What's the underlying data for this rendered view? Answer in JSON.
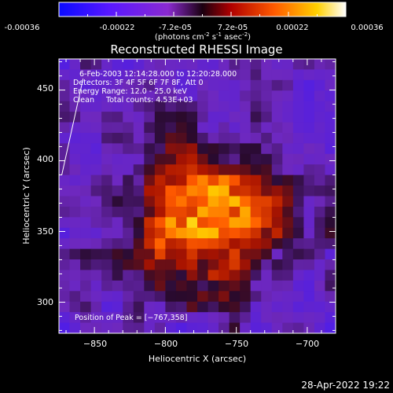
{
  "colorbar": {
    "tick_labels": [
      "-0.00036",
      "-0.00022",
      "-7.2e-05",
      "7.2e-05",
      "0.00022",
      "0.00036"
    ],
    "range": [
      -0.00036,
      0.00036
    ],
    "colormap": [
      "#1010ff",
      "#7a1cff",
      "#2a0030",
      "#c00000",
      "#ff6a00",
      "#ffd000",
      "#ffffff"
    ],
    "unit_base": "(photons cm",
    "unit_sup1": "-2",
    "unit_mid": " s",
    "unit_sup2": "-1",
    "unit_tail": " asec",
    "unit_sup3": "-2",
    "unit_close": ")"
  },
  "chart_data": {
    "type": "heatmap",
    "title": "Reconstructed RHESSI Image",
    "xlabel": "Heliocentric X (arcsec)",
    "ylabel": "Heliocentric Y (arcsec)",
    "xlim": [
      -875,
      -680
    ],
    "ylim": [
      278,
      472
    ],
    "x_ticks": [
      -850,
      -800,
      -750,
      -700
    ],
    "y_ticks": [
      300,
      350,
      400,
      450
    ],
    "x_tick_labels": [
      "−850",
      "−800",
      "−750",
      "−700"
    ],
    "y_tick_labels": [
      "300",
      "350",
      "400",
      "450"
    ],
    "peak": [
      -767,
      358
    ],
    "annotations": [
      "6-Feb-2003 12:14:28.000 to 12:20:28.000",
      "Detectors: 3F 4F 5F 6F 7F 8F, Att 0",
      "Energy Range: 12.0 - 25.0 keV",
      "Clean     Total counts: 4.53E+03"
    ],
    "peak_label": "Position of Peak = [−767,358]",
    "limb_line": [
      [
        -873,
        390
      ],
      [
        -858,
        458
      ]
    ]
  },
  "footer": {
    "timestamp": "28-Apr-2022 19:22"
  }
}
